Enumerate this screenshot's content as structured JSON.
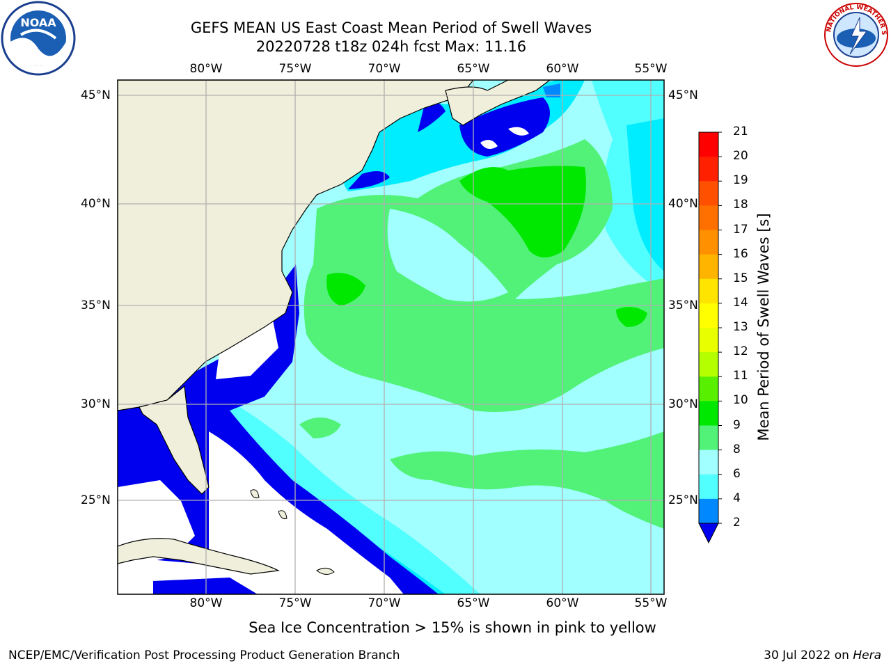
{
  "header": {
    "title_line1": "GEFS MEAN US East Coast Mean Period of Swell Waves",
    "title_line2": "20220728 t18z 024h fcst   Max: 11.16",
    "left_logo": "noara-logo",
    "left_logo_text": "NOAA",
    "right_logo": "nws-logo",
    "right_logo_text": "NATIONAL WEATHER SERVICE"
  },
  "map": {
    "lon_labels": [
      "80°W",
      "75°W",
      "70°W",
      "65°W",
      "60°W",
      "55°W"
    ],
    "lat_labels": [
      "45°N",
      "40°N",
      "35°N",
      "30°N",
      "25°N"
    ],
    "lon_range": [
      "85°W",
      "54.3°W"
    ],
    "lat_range": [
      "20.5°N",
      "45.8°N"
    ],
    "colors": {
      "land": "#efefdc",
      "ocean_white": "#ffffff",
      "grid": "#b0b0b0"
    }
  },
  "colorbar": {
    "label": "Mean Period of Swell Waves [s]",
    "ticks": [
      "21",
      "20",
      "19",
      "18",
      "17",
      "16",
      "15",
      "14",
      "13",
      "12",
      "11",
      "10",
      "9",
      "8",
      "6",
      "4",
      "2"
    ],
    "colors": [
      "#ff0000",
      "#ff2000",
      "#ff5000",
      "#ff7000",
      "#ff9000",
      "#ffb400",
      "#ffe400",
      "#ffff00",
      "#e8ff00",
      "#b4ff00",
      "#58f000",
      "#00e800",
      "#52f279",
      "#a1ffff",
      "#52ffff",
      "#00ecff",
      "#0088ff"
    ],
    "extend_color": "#0000ee"
  },
  "footer": {
    "caption": "Sea Ice Concentration > 15% is shown in pink to yellow",
    "left": "NCEP/EMC/Verification Post Processing Product Generation Branch",
    "right_date": "30 Jul 2022 on",
    "right_machine": "Hera"
  }
}
